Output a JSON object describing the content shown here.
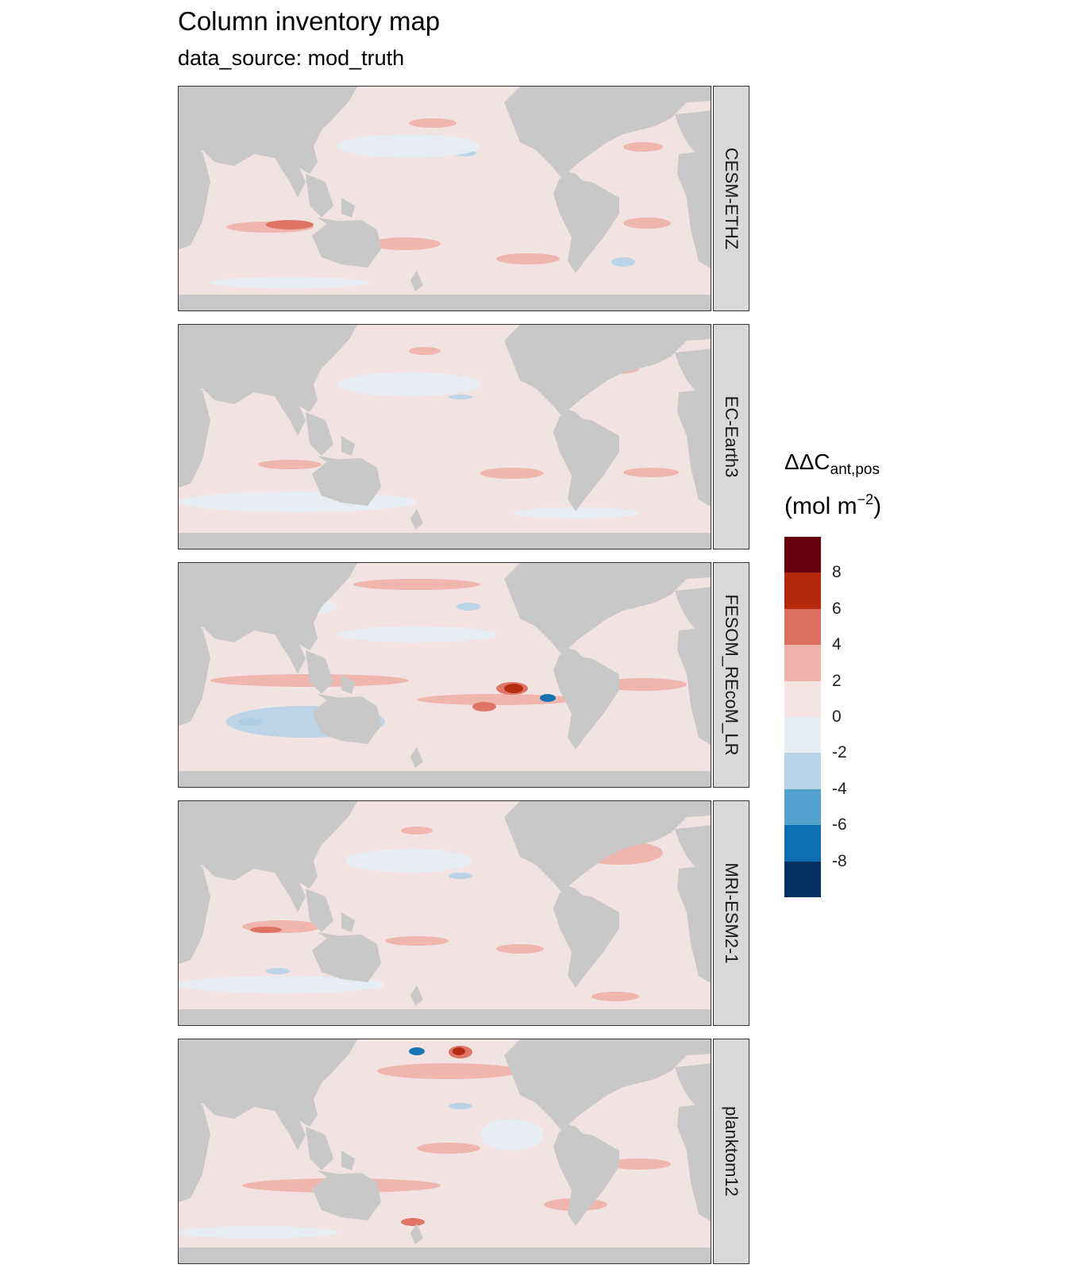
{
  "title": "Column inventory map",
  "subtitle": "data_source: mod_truth",
  "panels": [
    {
      "label": "CESM-ETHZ"
    },
    {
      "label": "EC-Earth3"
    },
    {
      "label": "FESOM_REcoM_LR"
    },
    {
      "label": "MRI-ESM2-1"
    },
    {
      "label": "planktom12"
    }
  ],
  "legend": {
    "title_main": "ΔΔC",
    "title_sub": "ant,pos",
    "unit_main": "(mol m",
    "unit_sup": "−2",
    "unit_end": ")",
    "ticks": [
      "8",
      "6",
      "4",
      "2",
      "0",
      "-2",
      "-4",
      "-6",
      "-8"
    ],
    "bin_colors": [
      "#67000d",
      "#b2290e",
      "#dc6f5f",
      "#efb2aa",
      "#f4e4e4",
      "#e6edf3",
      "#b7d3e7",
      "#53a2cd",
      "#0c6fb0",
      "#053061"
    ]
  },
  "colors": {
    "land": "#c8c8c8",
    "ocean_base": "#f2e3e3",
    "strip_bg": "#d9d9d9"
  }
}
